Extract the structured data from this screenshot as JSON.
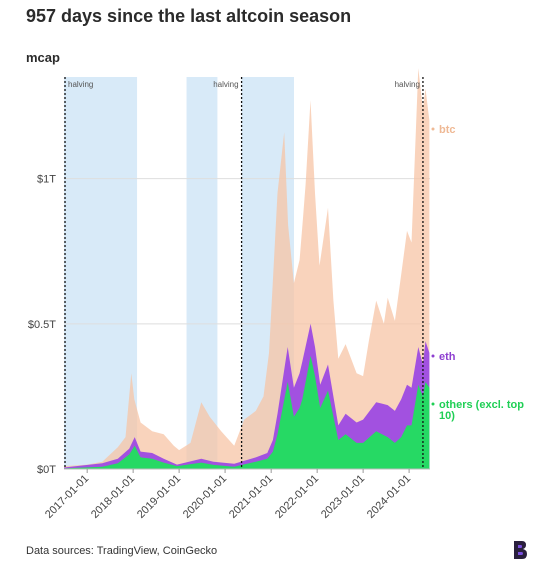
{
  "title": "957 days since the last altcoin season",
  "source": "Data sources: TradingView, CoinGecko",
  "colors": {
    "btc": "#f7c4a5",
    "eth": "#a251e0",
    "others": "#26d964",
    "altseason": "#d8eaf8"
  },
  "chart_data": {
    "type": "area",
    "stacked": false,
    "title": "957 days since the last altcoin season",
    "ylabel": "mcap",
    "ylim": [
      0,
      1.35
    ],
    "yticks": [
      {
        "value": 0,
        "label": "$0T"
      },
      {
        "value": 0.5,
        "label": "$0.5T"
      },
      {
        "value": 1,
        "label": "$1T"
      }
    ],
    "xlim": [
      "2016-07-01",
      "2024-06-15"
    ],
    "xticks": [
      "2017-01-01",
      "2018-01-01",
      "2019-01-01",
      "2020-01-01",
      "2021-01-01",
      "2022-01-01",
      "2023-01-01",
      "2024-01-01"
    ],
    "halvings": [
      {
        "date": "2016-07-09",
        "label": "halving"
      },
      {
        "date": "2020-05-11",
        "label": "halving"
      },
      {
        "date": "2024-04-20",
        "label": "halving"
      }
    ],
    "altcoin_seasons": [
      [
        "2016-07-01",
        "2018-02-01"
      ],
      [
        "2019-03-01",
        "2019-11-01"
      ],
      [
        "2020-05-11",
        "2021-07-01"
      ]
    ],
    "series": [
      {
        "name": "btc",
        "label": "btc",
        "x": [
          "2016-07-01",
          "2017-01-01",
          "2017-05-01",
          "2017-09-01",
          "2017-11-01",
          "2017-12-17",
          "2018-01-10",
          "2018-03-01",
          "2018-06-01",
          "2018-09-01",
          "2018-11-20",
          "2019-01-01",
          "2019-04-01",
          "2019-06-26",
          "2019-09-01",
          "2019-12-01",
          "2020-03-13",
          "2020-06-01",
          "2020-09-01",
          "2020-11-01",
          "2020-12-15",
          "2021-01-15",
          "2021-02-20",
          "2021-04-14",
          "2021-05-15",
          "2021-06-30",
          "2021-08-15",
          "2021-09-10",
          "2021-10-01",
          "2021-11-09",
          "2021-12-15",
          "2022-01-20",
          "2022-03-28",
          "2022-05-10",
          "2022-06-18",
          "2022-08-15",
          "2022-11-10",
          "2023-01-01",
          "2023-02-15",
          "2023-04-15",
          "2023-06-15",
          "2023-07-15",
          "2023-09-10",
          "2023-10-30",
          "2023-12-15",
          "2024-01-20",
          "2024-03-14",
          "2024-04-20",
          "2024-05-10",
          "2024-06-10"
        ],
        "values": [
          0.01,
          0.015,
          0.025,
          0.075,
          0.11,
          0.33,
          0.24,
          0.16,
          0.13,
          0.12,
          0.08,
          0.065,
          0.09,
          0.23,
          0.18,
          0.13,
          0.08,
          0.17,
          0.2,
          0.25,
          0.4,
          0.65,
          0.95,
          1.16,
          0.84,
          0.64,
          0.72,
          0.86,
          0.98,
          1.27,
          0.95,
          0.7,
          0.9,
          0.58,
          0.38,
          0.43,
          0.33,
          0.32,
          0.44,
          0.58,
          0.5,
          0.59,
          0.51,
          0.67,
          0.82,
          0.78,
          1.38,
          1.24,
          1.31,
          1.2
        ]
      },
      {
        "name": "eth",
        "label": "eth",
        "x": [
          "2016-07-01",
          "2017-05-01",
          "2017-09-01",
          "2017-12-01",
          "2018-01-13",
          "2018-03-01",
          "2018-06-01",
          "2018-09-01",
          "2018-12-15",
          "2019-06-26",
          "2019-10-01",
          "2020-03-13",
          "2020-09-01",
          "2020-12-01",
          "2021-01-15",
          "2021-02-20",
          "2021-05-12",
          "2021-06-30",
          "2021-08-15",
          "2021-09-05",
          "2021-11-10",
          "2021-12-15",
          "2022-01-25",
          "2022-03-28",
          "2022-06-18",
          "2022-08-15",
          "2022-11-10",
          "2023-01-01",
          "2023-04-15",
          "2023-07-15",
          "2023-09-10",
          "2023-10-30",
          "2023-12-15",
          "2024-01-20",
          "2024-03-14",
          "2024-04-20",
          "2024-05-10",
          "2024-06-10"
        ],
        "values": [
          0.005,
          0.02,
          0.035,
          0.07,
          0.11,
          0.06,
          0.055,
          0.035,
          0.015,
          0.035,
          0.025,
          0.018,
          0.04,
          0.055,
          0.1,
          0.19,
          0.42,
          0.28,
          0.33,
          0.37,
          0.5,
          0.42,
          0.29,
          0.36,
          0.15,
          0.19,
          0.16,
          0.17,
          0.23,
          0.22,
          0.2,
          0.24,
          0.29,
          0.28,
          0.42,
          0.36,
          0.44,
          0.4
        ]
      },
      {
        "name": "others",
        "label": "others (excl. top 10)",
        "x": [
          "2016-07-01",
          "2017-05-01",
          "2017-09-01",
          "2017-12-01",
          "2018-01-13",
          "2018-03-01",
          "2018-06-01",
          "2018-09-01",
          "2018-12-15",
          "2019-06-26",
          "2019-10-01",
          "2020-03-13",
          "2020-09-01",
          "2020-12-01",
          "2021-01-15",
          "2021-02-20",
          "2021-05-12",
          "2021-06-30",
          "2021-08-15",
          "2021-09-05",
          "2021-11-10",
          "2021-12-15",
          "2022-01-25",
          "2022-03-28",
          "2022-06-18",
          "2022-08-15",
          "2022-11-10",
          "2023-01-01",
          "2023-04-15",
          "2023-07-15",
          "2023-09-10",
          "2023-10-30",
          "2023-12-15",
          "2024-01-20",
          "2024-03-14",
          "2024-04-20",
          "2024-05-10",
          "2024-06-10"
        ],
        "values": [
          0.002,
          0.008,
          0.02,
          0.05,
          0.08,
          0.04,
          0.035,
          0.022,
          0.01,
          0.022,
          0.014,
          0.008,
          0.025,
          0.035,
          0.06,
          0.12,
          0.3,
          0.18,
          0.21,
          0.24,
          0.39,
          0.32,
          0.21,
          0.27,
          0.1,
          0.12,
          0.09,
          0.09,
          0.13,
          0.11,
          0.09,
          0.11,
          0.15,
          0.15,
          0.29,
          0.25,
          0.3,
          0.28
        ]
      }
    ]
  }
}
